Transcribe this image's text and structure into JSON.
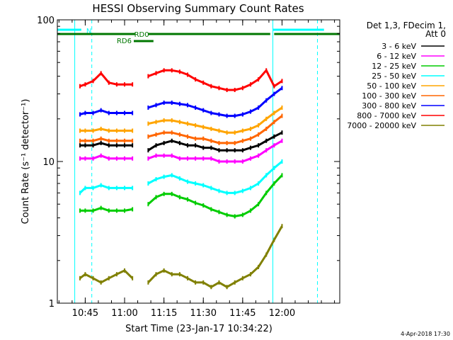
{
  "chart_data": {
    "type": "line",
    "title": "HESSI Observing Summary Count Rates",
    "xlabel": "Start Time (23-Jan-17 10:34:22)",
    "ylabel": "Count Rate (s⁻¹ detector⁻¹)",
    "y_scale": "log",
    "ylim": [
      1,
      100
    ],
    "y_ticks": [
      "1",
      "10",
      "100"
    ],
    "xlim": [
      "10:34:22",
      "12:22:00"
    ],
    "x_ticks": [
      "10:45",
      "11:00",
      "11:15",
      "11:30",
      "11:45",
      "12:00"
    ],
    "grid": false,
    "legend_position": "right",
    "legend_header": [
      "Det 1,3, FDecim 1,",
      "Att 0"
    ],
    "stamp": "4-Apr-2018 17:30",
    "x": [
      "10:43",
      "10:45",
      "10:48",
      "10:51",
      "10:54",
      "10:57",
      "11:00",
      "11:03",
      "11:06",
      "11:09",
      "11:12",
      "11:15",
      "11:18",
      "11:21",
      "11:24",
      "11:27",
      "11:30",
      "11:33",
      "11:36",
      "11:39",
      "11:42",
      "11:45",
      "11:48",
      "11:51",
      "11:54",
      "11:57",
      "12:00"
    ],
    "series": [
      {
        "name": "3 - 6 keV",
        "color": "#000000",
        "values": [
          13,
          13,
          13,
          13.5,
          13,
          13,
          13,
          13,
          null,
          12,
          13,
          13.5,
          14,
          13.5,
          13,
          13,
          12.5,
          12.5,
          12,
          12,
          12,
          12,
          12.5,
          13,
          14,
          15,
          16
        ]
      },
      {
        "name": "6 - 12 keV",
        "color": "#ff00ff",
        "values": [
          10.5,
          10.5,
          10.5,
          11,
          10.5,
          10.5,
          10.5,
          10.5,
          null,
          10.5,
          11,
          11,
          11,
          10.5,
          10.5,
          10.5,
          10.5,
          10.5,
          10,
          10,
          10,
          10,
          10.5,
          11,
          12,
          13,
          14
        ]
      },
      {
        "name": "12 - 25 keV",
        "color": "#00cc00",
        "values": [
          4.5,
          4.5,
          4.5,
          4.7,
          4.5,
          4.5,
          4.5,
          4.6,
          null,
          5,
          5.6,
          5.9,
          5.9,
          5.6,
          5.4,
          5.1,
          4.9,
          4.6,
          4.4,
          4.2,
          4.1,
          4.2,
          4.5,
          5,
          6,
          7,
          8
        ]
      },
      {
        "name": "25 - 50 keV",
        "color": "#00ffff",
        "values": [
          6,
          6.5,
          6.5,
          6.8,
          6.5,
          6.5,
          6.5,
          6.5,
          null,
          7,
          7.5,
          7.8,
          8,
          7.6,
          7.2,
          7,
          6.8,
          6.5,
          6.2,
          6,
          6,
          6.2,
          6.5,
          7,
          8,
          9,
          10
        ]
      },
      {
        "name": "50 - 100 keV",
        "color": "#ffa500",
        "values": [
          16.5,
          16.5,
          16.5,
          17,
          16.5,
          16.5,
          16.5,
          16.5,
          null,
          18.5,
          19,
          19.5,
          19.5,
          19,
          18.5,
          18,
          17.5,
          17,
          16.5,
          16,
          16,
          16.5,
          17,
          18,
          20,
          22,
          24
        ]
      },
      {
        "name": "100 - 300 keV",
        "color": "#ff6600",
        "values": [
          14,
          14,
          14,
          14.5,
          14,
          14,
          14,
          14,
          null,
          15,
          15.5,
          16,
          16,
          15.5,
          15,
          14.5,
          14.5,
          14,
          13.5,
          13.5,
          13.5,
          14,
          14.5,
          15.5,
          17,
          19,
          21
        ]
      },
      {
        "name": "300 - 800 keV",
        "color": "#0000ff",
        "values": [
          21.5,
          22,
          22,
          23,
          22,
          22,
          22,
          22,
          null,
          24,
          25,
          26,
          26,
          25.5,
          25,
          24,
          23,
          22,
          21.5,
          21,
          21,
          21.5,
          22.5,
          24,
          27,
          30,
          33
        ]
      },
      {
        "name": "800 - 7000 keV",
        "color": "#ff0000",
        "values": [
          34,
          35,
          37,
          42,
          36,
          35,
          35,
          35,
          null,
          40,
          42,
          44,
          44,
          43,
          41,
          38,
          36,
          34,
          33,
          32,
          32,
          33,
          35,
          38,
          44,
          34,
          37
        ]
      },
      {
        "name": "7000 - 20000 keV",
        "color": "#808000",
        "values": [
          1.5,
          1.6,
          1.5,
          1.4,
          1.5,
          1.6,
          1.7,
          1.5,
          null,
          1.4,
          1.6,
          1.7,
          1.6,
          1.6,
          1.5,
          1.4,
          1.4,
          1.3,
          1.4,
          1.3,
          1.4,
          1.5,
          1.6,
          1.8,
          2.2,
          2.8,
          3.5
        ]
      }
    ],
    "annotations": [
      {
        "label": "N",
        "color": "#00ffff",
        "segments": [
          [
            "10:34:22",
            "10:43:30"
          ],
          [
            "11:56:30",
            "12:16:00"
          ]
        ]
      },
      {
        "label": "RD0",
        "color": "#007700",
        "segments": [
          [
            "10:34:22",
            "11:04:00"
          ],
          [
            "11:09:00",
            "11:55:30"
          ],
          [
            "11:57:00",
            "12:22:00"
          ]
        ]
      },
      {
        "label": "RD6",
        "color": "#007700",
        "segments": [
          [
            "11:03:30",
            "11:11:00"
          ]
        ]
      }
    ],
    "vertical_markers": [
      {
        "time": "10:41:00",
        "color": "#00ffff",
        "style": "solid"
      },
      {
        "time": "10:47:30",
        "color": "#00ffff",
        "style": "dashed"
      },
      {
        "time": "11:56:30",
        "color": "#00ffff",
        "style": "solid"
      },
      {
        "time": "12:13:30",
        "color": "#00ffff",
        "style": "dashed"
      }
    ]
  }
}
